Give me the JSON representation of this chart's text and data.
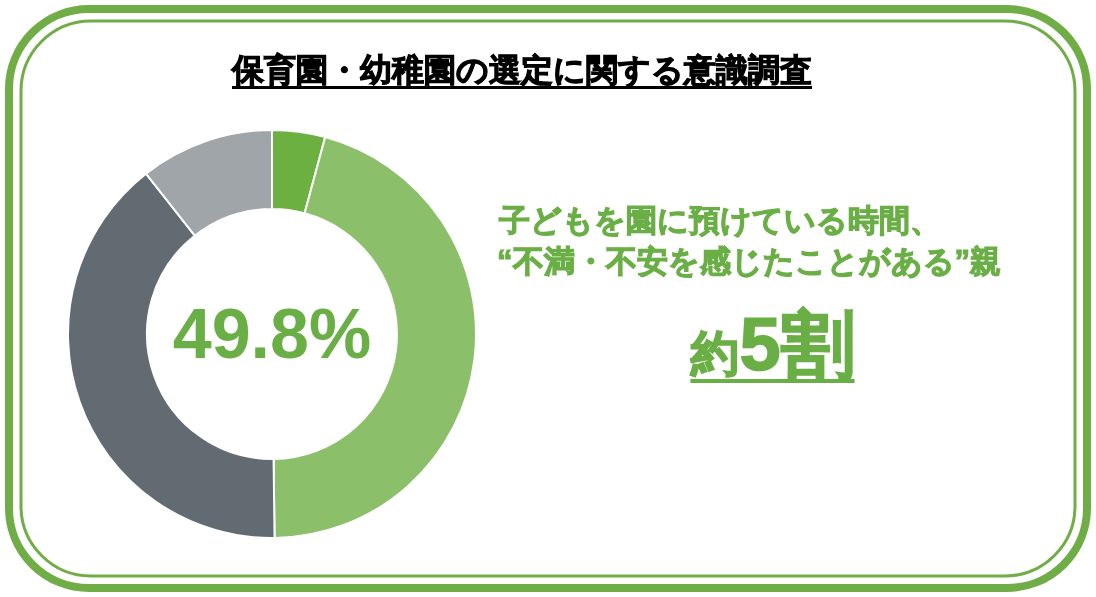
{
  "chart_data": {
    "type": "donut",
    "title": "保育園・幼稚園の選定に関する意識調査",
    "categories": [
      null,
      null,
      null,
      null
    ],
    "values": [
      4.2,
      45.6,
      39.6,
      10.6
    ],
    "colors": [
      "#6db042",
      "#8bbf6a",
      "#626a72",
      "#a0a5aa"
    ],
    "annotations": [
      "49.8%",
      "子どもを園に預けている時間、",
      "“不満・不安を感じたことがある”親",
      "約5割"
    ]
  }
}
